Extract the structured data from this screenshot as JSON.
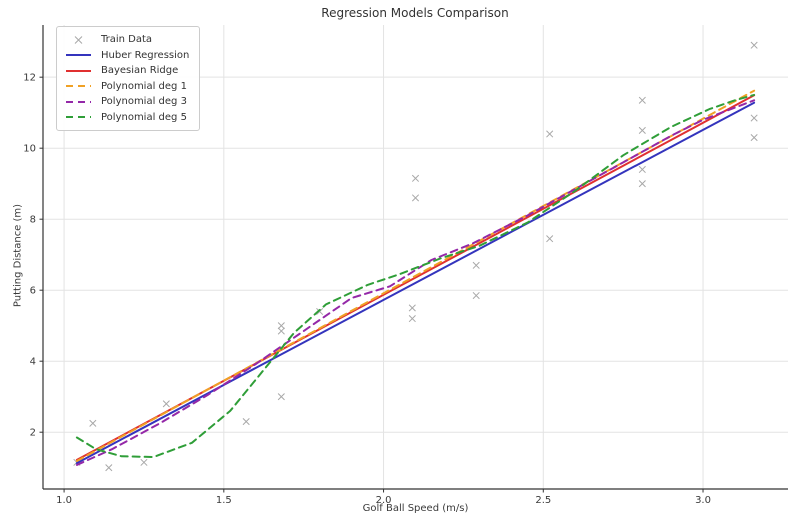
{
  "figure": {
    "title": "Regression Models Comparison"
  },
  "chart_data": {
    "type": "scatter",
    "title": "Regression Models Comparison",
    "xlabel": "Golf Ball Speed (m/s)",
    "ylabel": "Putting Distance (m)",
    "xlim": [
      0.934,
      3.266
    ],
    "ylim": [
      0.4,
      13.47
    ],
    "x_ticks": [
      1.0,
      1.5,
      2.0,
      2.5,
      3.0
    ],
    "x_tick_labels": [
      "1.0",
      "1.5",
      "2.0",
      "2.5",
      "3.0"
    ],
    "y_ticks": [
      2,
      4,
      6,
      8,
      10,
      12
    ],
    "y_tick_labels": [
      "2",
      "4",
      "6",
      "8",
      "10",
      "12"
    ],
    "grid": true,
    "grid_color": "#e3e3e3",
    "spine_color": "#333333",
    "tick_text_color": "#3a3a3a",
    "legend_position": "upper-left",
    "train_data": {
      "label": "Train Data",
      "marker": "x",
      "color": "#a8a8a8",
      "points": [
        [
          1.04,
          1.15
        ],
        [
          1.09,
          2.25
        ],
        [
          1.14,
          1.0
        ],
        [
          1.25,
          1.15
        ],
        [
          1.32,
          2.8
        ],
        [
          1.57,
          2.3
        ],
        [
          1.68,
          3.0
        ],
        [
          1.68,
          4.85
        ],
        [
          1.68,
          5.0
        ],
        [
          1.8,
          5.4
        ],
        [
          2.09,
          5.2
        ],
        [
          2.09,
          5.5
        ],
        [
          2.1,
          8.6
        ],
        [
          2.1,
          9.15
        ],
        [
          2.29,
          5.85
        ],
        [
          2.29,
          6.7
        ],
        [
          2.52,
          7.45
        ],
        [
          2.52,
          10.4
        ],
        [
          2.81,
          9.0
        ],
        [
          2.81,
          9.4
        ],
        [
          2.81,
          10.5
        ],
        [
          2.81,
          11.35
        ],
        [
          3.16,
          10.3
        ],
        [
          3.16,
          10.85
        ],
        [
          3.16,
          12.9
        ]
      ]
    },
    "series": [
      {
        "name": "Huber Regression",
        "color": "#3434bd",
        "style": "solid",
        "points": [
          [
            1.04,
            1.13
          ],
          [
            3.16,
            11.28
          ]
        ]
      },
      {
        "name": "Bayesian Ridge",
        "color": "#e03030",
        "style": "solid",
        "points": [
          [
            1.04,
            1.22
          ],
          [
            3.16,
            11.49
          ]
        ]
      },
      {
        "name": "Polynomial deg 1",
        "color": "#f0a125",
        "style": "dashed",
        "points": [
          [
            1.04,
            1.19
          ],
          [
            3.16,
            11.62
          ]
        ]
      },
      {
        "name": "Polynomial deg 3",
        "color": "#9428a8",
        "style": "dashed",
        "points": [
          [
            1.04,
            1.08
          ],
          [
            1.15,
            1.52
          ],
          [
            1.3,
            2.25
          ],
          [
            1.45,
            3.05
          ],
          [
            1.6,
            3.92
          ],
          [
            1.75,
            4.85
          ],
          [
            1.9,
            5.78
          ],
          [
            2.02,
            6.11
          ],
          [
            2.15,
            6.85
          ],
          [
            2.28,
            7.32
          ],
          [
            2.45,
            8.1
          ],
          [
            2.6,
            8.85
          ],
          [
            2.75,
            9.6
          ],
          [
            2.9,
            10.35
          ],
          [
            3.0,
            10.8
          ],
          [
            3.16,
            11.35
          ]
        ]
      },
      {
        "name": "Polynomial deg 5",
        "color": "#2f9e38",
        "style": "dashed",
        "points": [
          [
            1.04,
            1.85
          ],
          [
            1.1,
            1.52
          ],
          [
            1.18,
            1.32
          ],
          [
            1.28,
            1.3
          ],
          [
            1.4,
            1.7
          ],
          [
            1.52,
            2.6
          ],
          [
            1.62,
            3.7
          ],
          [
            1.72,
            4.8
          ],
          [
            1.82,
            5.6
          ],
          [
            1.95,
            6.15
          ],
          [
            2.05,
            6.45
          ],
          [
            2.18,
            6.9
          ],
          [
            2.3,
            7.25
          ],
          [
            2.45,
            7.9
          ],
          [
            2.6,
            8.8
          ],
          [
            2.75,
            9.8
          ],
          [
            2.9,
            10.6
          ],
          [
            3.02,
            11.1
          ],
          [
            3.1,
            11.35
          ],
          [
            3.16,
            11.5
          ]
        ]
      }
    ]
  }
}
